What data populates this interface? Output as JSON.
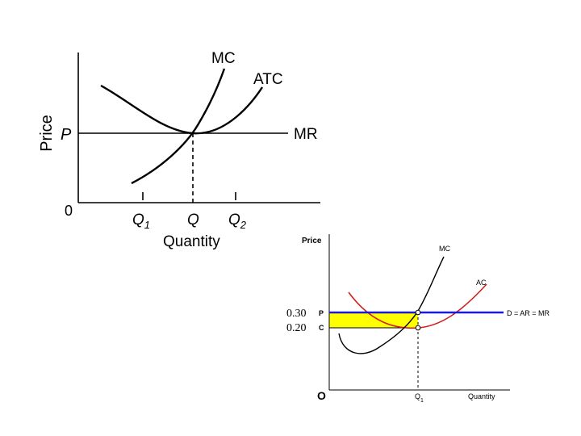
{
  "diagram1": {
    "y_axis_label": "Price",
    "x_axis_label": "Quantity",
    "origin": "0",
    "price_label": "P",
    "curves": {
      "mc": "MC",
      "atc": "ATC",
      "mr": "MR"
    },
    "ticks": {
      "q1": "Q",
      "q1_sub": "1",
      "q": "Q",
      "q2": "Q",
      "q2_sub": "2"
    }
  },
  "diagram2": {
    "y_axis_label": "Price",
    "x_axis_label": "Quantity",
    "origin": "O",
    "price_tag": "P",
    "cost_tag": "C",
    "price_value": "0.30",
    "cost_value": "0.20",
    "curves": {
      "mc": "MC",
      "ac": "AC",
      "demand": "D = AR = MR"
    },
    "q_label": "Q",
    "q_sub": "1",
    "colors": {
      "profit_area": "#ffff00",
      "demand_line": "#1a1adc",
      "ac_curve": "#d22020"
    }
  }
}
